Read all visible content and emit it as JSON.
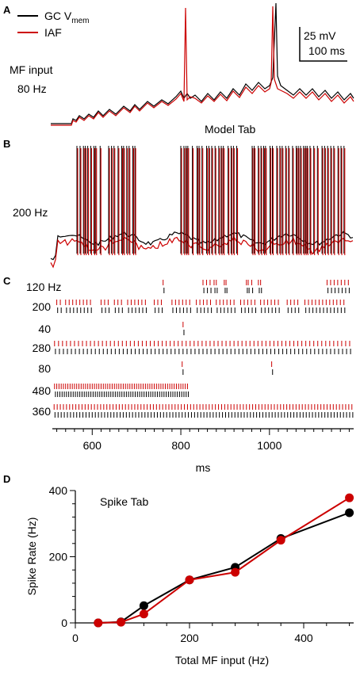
{
  "colors": {
    "gc": "#000000",
    "iaf": "#cc0000"
  },
  "panel_a": {
    "letter": "A",
    "legend": {
      "gc_prefix": "GC V",
      "gc_sub": "mem",
      "iaf": "IAF"
    },
    "scalebar": {
      "voltage": "25 mV",
      "time": "100 ms"
    },
    "input_label_line1": "MF input",
    "input_label_line2": "80 Hz"
  },
  "panel_b": {
    "letter": "B",
    "title": "Model Tab",
    "input_label": "200 Hz"
  },
  "panel_c": {
    "letter": "C",
    "xlabel": "ms",
    "xticks": [
      600,
      800,
      1000
    ],
    "xlim": [
      510,
      1190
    ],
    "rows": [
      {
        "label": "120 Hz",
        "red": [
          760,
          850,
          858,
          866,
          875,
          880,
          898,
          902,
          948,
          952,
          960,
          975,
          980,
          1130,
          1138,
          1146,
          1154,
          1162,
          1170,
          1178
        ]
      },
      {
        "label": "200",
        "red": [
          520,
          528,
          540,
          548,
          556,
          564,
          572,
          580,
          588,
          596,
          620,
          628,
          636,
          650,
          658,
          666,
          680,
          688,
          696,
          704,
          712,
          720,
          740,
          748,
          756,
          780,
          788,
          796,
          804,
          812,
          820,
          835,
          843,
          851,
          859,
          867,
          880,
          888,
          896,
          904,
          912,
          920,
          935,
          943,
          951,
          959,
          967,
          980,
          988,
          996,
          1004,
          1012,
          1020,
          1040,
          1048,
          1056,
          1064,
          1080,
          1088,
          1096,
          1104,
          1112,
          1120,
          1128,
          1136,
          1144,
          1152,
          1160,
          1168
        ]
      },
      {
        "label": "40",
        "red": [
          805
        ]
      },
      {
        "label": "280",
        "red": [
          515,
          524,
          533,
          542,
          551,
          560,
          569,
          578,
          587,
          596,
          605,
          614,
          623,
          632,
          641,
          650,
          659,
          668,
          677,
          686,
          695,
          704,
          713,
          722,
          731,
          740,
          749,
          758,
          767,
          776,
          785,
          794,
          803,
          812,
          821,
          830,
          839,
          848,
          857,
          866,
          875,
          884,
          893,
          902,
          911,
          920,
          929,
          938,
          947,
          956,
          965,
          974,
          983,
          992,
          1001,
          1010,
          1019,
          1028,
          1037,
          1046,
          1055,
          1064,
          1073,
          1082,
          1091,
          1100,
          1109,
          1118,
          1127,
          1136,
          1145,
          1154,
          1163,
          1172,
          1181
        ]
      },
      {
        "label": "80",
        "red": [
          803,
          1005
        ]
      },
      {
        "label": "480",
        "red": [
          515,
          520,
          525,
          530,
          535,
          540,
          545,
          550,
          555,
          560,
          565,
          570,
          575,
          580,
          585,
          590,
          595,
          600,
          605,
          610,
          615,
          620,
          625,
          630,
          635,
          640,
          645,
          650,
          655,
          660,
          665,
          670,
          675,
          680,
          685,
          690,
          695,
          700,
          705,
          710,
          715,
          720,
          725,
          730,
          735,
          740,
          745,
          750,
          755,
          760,
          765,
          770,
          775,
          780,
          785,
          790,
          795,
          800,
          805,
          810,
          815
        ]
      },
      {
        "label": "360",
        "red": [
          514,
          521,
          528,
          535,
          542,
          549,
          556,
          563,
          570,
          577,
          584,
          591,
          598,
          605,
          612,
          619,
          626,
          633,
          640,
          647,
          654,
          661,
          668,
          675,
          682,
          689,
          696,
          703,
          710,
          717,
          724,
          731,
          738,
          745,
          752,
          759,
          766,
          773,
          780,
          787,
          794,
          801,
          808,
          815,
          822,
          829,
          836,
          843,
          850,
          857,
          864,
          871,
          878,
          885,
          892,
          899,
          906,
          913,
          920,
          927,
          934,
          941,
          948,
          955,
          962,
          969,
          976,
          983,
          990,
          997,
          1004,
          1011,
          1018,
          1025,
          1032,
          1039,
          1046,
          1053,
          1060,
          1067,
          1074,
          1081,
          1088,
          1095,
          1102,
          1109,
          1116,
          1123,
          1130,
          1137,
          1144,
          1151,
          1158,
          1165,
          1172,
          1179,
          1186
        ]
      }
    ]
  },
  "chart_data": {
    "type": "line",
    "title": "Spike Tab",
    "xlabel": "Total MF input (Hz)",
    "ylabel": "Spike Rate (Hz)",
    "xlim": [
      0,
      500
    ],
    "ylim": [
      0,
      400
    ],
    "xticks": [
      0,
      200,
      400
    ],
    "yticks": [
      0,
      200,
      400
    ],
    "series": [
      {
        "name": "GC Vmem",
        "color": "#000000",
        "x": [
          40,
          80,
          120,
          200,
          280,
          360,
          480
        ],
        "y": [
          0,
          3,
          52,
          130,
          168,
          255,
          333
        ]
      },
      {
        "name": "IAF",
        "color": "#cc0000",
        "x": [
          40,
          80,
          120,
          200,
          280,
          360,
          480
        ],
        "y": [
          0,
          2,
          27,
          130,
          153,
          250,
          378
        ]
      }
    ]
  },
  "panel_d": {
    "letter": "D",
    "title": "Spike Tab"
  }
}
